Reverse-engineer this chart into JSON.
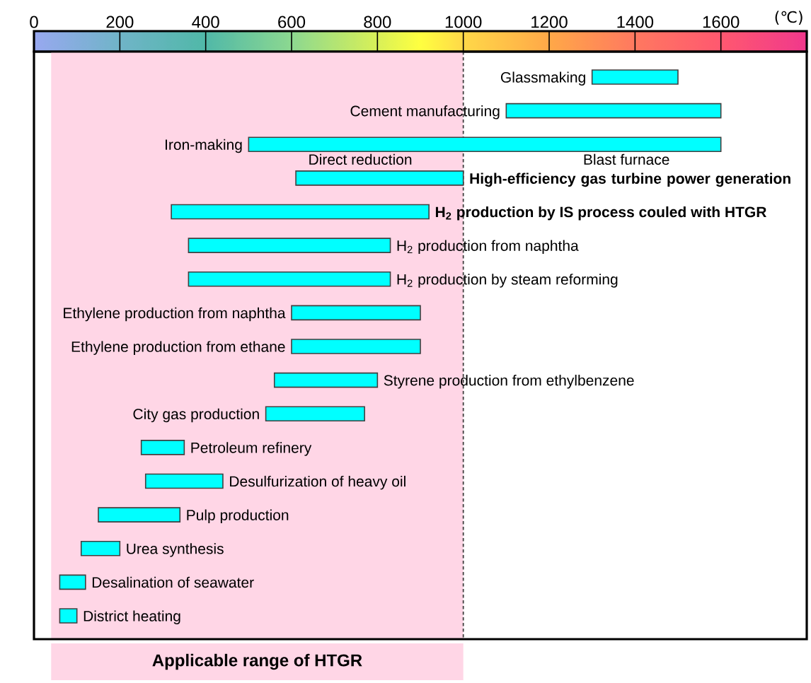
{
  "chart_data": {
    "type": "bar",
    "orientation": "horizontal",
    "xlabel": "(℃)",
    "categories": [
      "Glassmaking",
      "Cement manufacturing",
      "Iron-making",
      "**High-efficiency gas turbine power generation**",
      "**H$_{2}$ production by IS process couled with HTGR**",
      "H$_{2}$ production from naphtha",
      "H$_{2}$ production by steam reforming",
      "Ethylene production from naphtha",
      "Ethylene production from ethane",
      "Styrene production from ethylbenzene",
      "City gas production",
      "Petroleum refinery",
      "Desulfurization of heavy oil",
      "Pulp production",
      "Urea synthesis",
      "Desalination of seawater",
      "District heating"
    ],
    "base": [
      1300,
      1100,
      500,
      610,
      320,
      360,
      360,
      600,
      600,
      560,
      540,
      250,
      260,
      150,
      110,
      60,
      60
    ],
    "values": [
      200,
      500,
      1100,
      390,
      600,
      470,
      470,
      300,
      300,
      240,
      230,
      100,
      180,
      190,
      90,
      60,
      40
    ],
    "color": "#00ffff",
    "xlim": [
      0,
      1800
    ],
    "xticks": [
      0,
      200,
      400,
      600,
      800,
      1000,
      1200,
      1400,
      1600
    ],
    "bands": [
      {
        "axis": "x",
        "from": 40,
        "to": 1000,
        "label": "Applicable range of HTGR",
        "color": "#ffd6e6"
      }
    ],
    "ref_lines": [
      {
        "axis": "x",
        "value": 1000,
        "line_style": "dashed"
      }
    ],
    "annotations": [
      {
        "text": "Direct reduction",
        "x": 760,
        "y": "Iron-making"
      },
      {
        "text": "Blast furnace",
        "x": 1380,
        "y": "Iron-making"
      }
    ]
  }
}
